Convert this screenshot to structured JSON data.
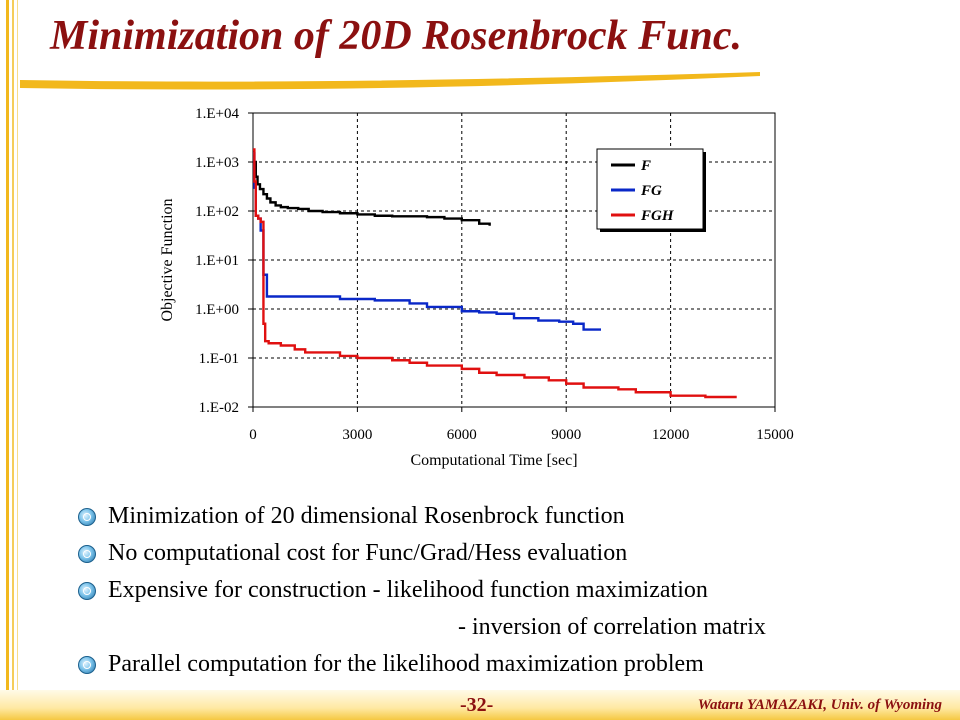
{
  "slide": {
    "title": "Minimization of 20D Rosenbrock Func.",
    "page_number": "-32-",
    "author": "Wataru YAMAZAKI, Univ. of Wyoming",
    "bullets": [
      {
        "icon": "swirl-bullet-icon",
        "text": "Minimization of 20 dimensional  Rosenbrock function"
      },
      {
        "icon": "swirl-bullet-icon",
        "text": "No computational cost for Func/Grad/Hess evaluation"
      },
      {
        "icon": "swirl-bullet-icon",
        "text": "Expensive for construction - likelihood function maximization"
      },
      {
        "icon": "",
        "text": "- inversion of correlation matrix"
      },
      {
        "icon": "swirl-bullet-icon",
        "text": "Parallel computation for the likelihood maximization problem"
      }
    ],
    "colors": {
      "title": "#8b1010",
      "accent_bar": "#f2b81c"
    }
  },
  "chart_data": {
    "type": "line",
    "title": "",
    "xlabel": "Computational Time [sec]",
    "ylabel": "Objective Function",
    "xlim": [
      0,
      15000
    ],
    "ylim": [
      0.01,
      10000
    ],
    "yscale": "log",
    "xticks": [
      0,
      3000,
      6000,
      9000,
      12000,
      15000
    ],
    "xtick_labels": [
      "0",
      "3000",
      "6000",
      "9000",
      "12000",
      "15000"
    ],
    "yticks": [
      0.01,
      0.1,
      1,
      10,
      100,
      1000,
      10000
    ],
    "ytick_labels": [
      "1.E-02",
      "1.E-01",
      "1.E+00",
      "1.E+01",
      "1.E+02",
      "1.E+03",
      "1.E+04"
    ],
    "grid": true,
    "legend_position": "top-right",
    "series": [
      {
        "name": "F",
        "color": "#000000",
        "x": [
          0,
          30,
          80,
          130,
          200,
          300,
          400,
          500,
          650,
          800,
          1000,
          1300,
          1600,
          2000,
          2500,
          3000,
          3500,
          4000,
          5000,
          5500,
          6000,
          6500,
          6800
        ],
        "y": [
          1500,
          1000,
          500,
          350,
          280,
          220,
          180,
          150,
          130,
          120,
          115,
          110,
          100,
          95,
          90,
          85,
          80,
          78,
          75,
          70,
          65,
          55,
          50
        ]
      },
      {
        "name": "FG",
        "color": "#0a28c8",
        "x": [
          0,
          40,
          80,
          150,
          220,
          300,
          400,
          1000,
          2500,
          3000,
          3500,
          4500,
          5000,
          6000,
          6500,
          7000,
          7500,
          8200,
          8800,
          9200,
          9500,
          10000
        ],
        "y": [
          1500,
          300,
          80,
          70,
          40,
          5,
          1.8,
          1.8,
          1.6,
          1.6,
          1.5,
          1.3,
          1.1,
          0.9,
          0.85,
          0.8,
          0.65,
          0.58,
          0.55,
          0.5,
          0.38,
          0.38
        ]
      },
      {
        "name": "FGH",
        "color": "#e01010",
        "x": [
          0,
          40,
          80,
          150,
          220,
          300,
          350,
          450,
          800,
          1200,
          1500,
          2500,
          3000,
          4000,
          4500,
          5000,
          6000,
          6500,
          7000,
          7800,
          8500,
          9000,
          9500,
          10500,
          11000,
          12000,
          13000,
          13900
        ],
        "y": [
          1800,
          400,
          80,
          70,
          60,
          0.5,
          0.22,
          0.2,
          0.18,
          0.15,
          0.13,
          0.11,
          0.1,
          0.09,
          0.08,
          0.07,
          0.06,
          0.05,
          0.045,
          0.04,
          0.035,
          0.03,
          0.025,
          0.023,
          0.02,
          0.017,
          0.016,
          0.016
        ]
      }
    ]
  }
}
